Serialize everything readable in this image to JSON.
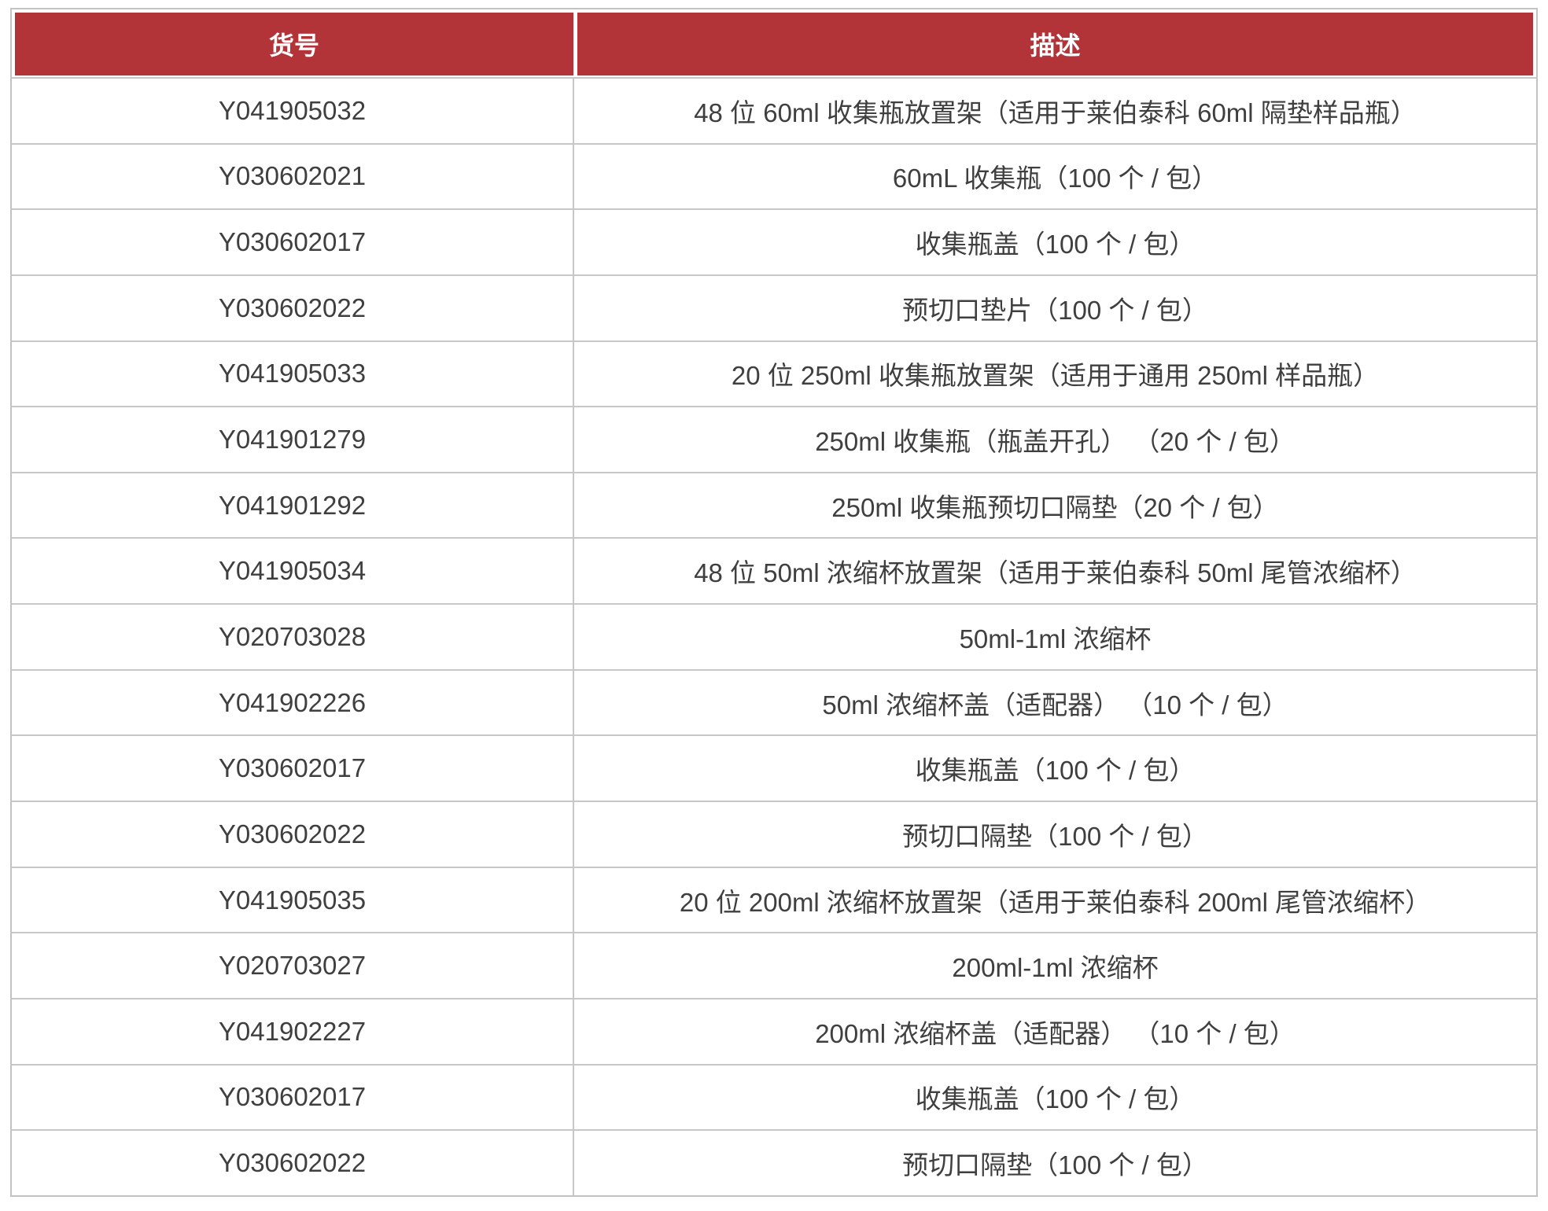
{
  "table": {
    "headers": {
      "item_no": "货号",
      "description": "描述"
    },
    "colors": {
      "header_bg": "#b23338",
      "header_text": "#ffffff",
      "border": "#c7c7c7",
      "cell_text": "#3f3f3f"
    },
    "rows": [
      {
        "item_no": "Y041905032",
        "description": "48 位 60ml 收集瓶放置架（适用于莱伯泰科 60ml 隔垫样品瓶）"
      },
      {
        "item_no": "Y030602021",
        "description": "60mL 收集瓶（100 个 / 包）"
      },
      {
        "item_no": "Y030602017",
        "description": "收集瓶盖（100 个 / 包）"
      },
      {
        "item_no": "Y030602022",
        "description": "预切口垫片（100 个 / 包）"
      },
      {
        "item_no": "Y041905033",
        "description": "20 位 250ml 收集瓶放置架（适用于通用 250ml 样品瓶）"
      },
      {
        "item_no": "Y041901279",
        "description": "250ml 收集瓶（瓶盖开孔） （20 个 / 包）"
      },
      {
        "item_no": "Y041901292",
        "description": "250ml 收集瓶预切口隔垫（20 个 / 包）"
      },
      {
        "item_no": "Y041905034",
        "description": "48 位 50ml 浓缩杯放置架（适用于莱伯泰科 50ml 尾管浓缩杯）"
      },
      {
        "item_no": "Y020703028",
        "description": "50ml-1ml 浓缩杯"
      },
      {
        "item_no": "Y041902226",
        "description": "50ml 浓缩杯盖（适配器） （10 个 / 包）"
      },
      {
        "item_no": "Y030602017",
        "description": "收集瓶盖（100 个 / 包）"
      },
      {
        "item_no": "Y030602022",
        "description": "预切口隔垫（100 个 / 包）"
      },
      {
        "item_no": "Y041905035",
        "description": "20 位 200ml 浓缩杯放置架（适用于莱伯泰科 200ml 尾管浓缩杯）"
      },
      {
        "item_no": "Y020703027",
        "description": "200ml-1ml 浓缩杯"
      },
      {
        "item_no": "Y041902227",
        "description": "200ml 浓缩杯盖（适配器） （10 个 / 包）"
      },
      {
        "item_no": "Y030602017",
        "description": "收集瓶盖（100 个 / 包）"
      },
      {
        "item_no": "Y030602022",
        "description": "预切口隔垫（100 个 / 包）"
      }
    ]
  }
}
